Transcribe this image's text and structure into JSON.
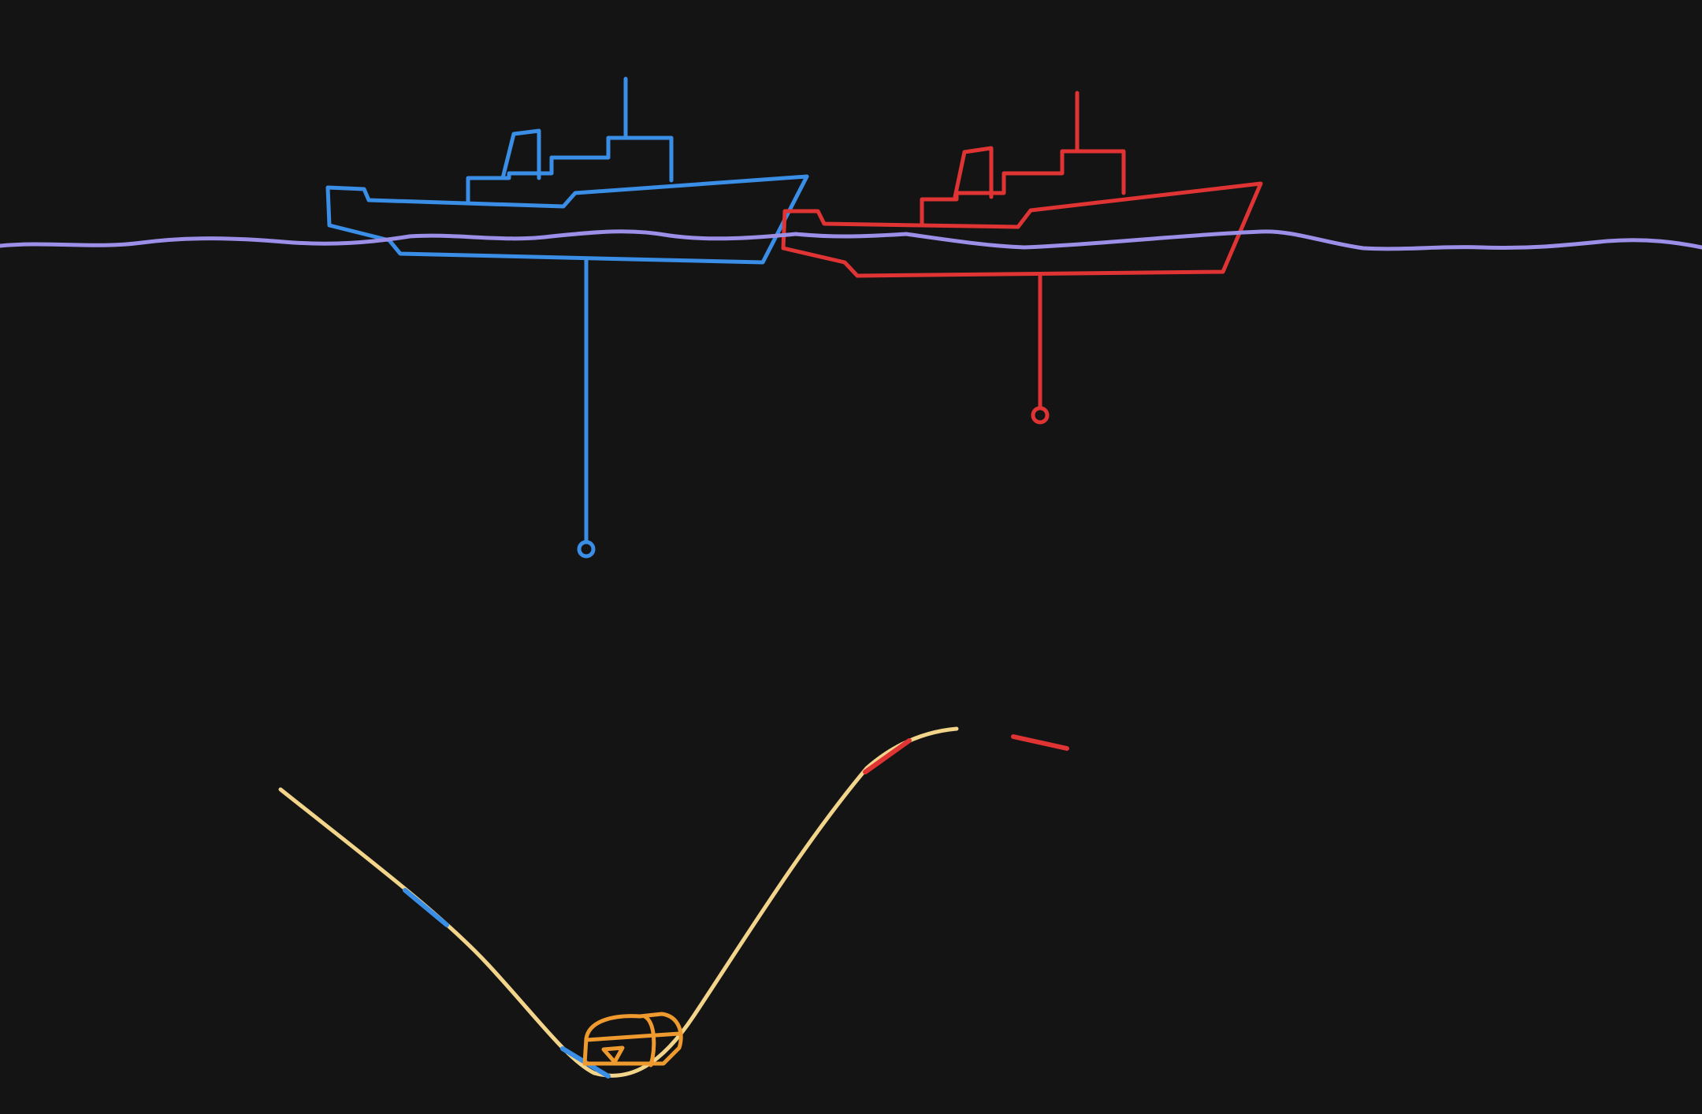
{
  "colors": {
    "background": "#141415",
    "water_surface": "#9b8fe8",
    "blue_ship": "#3a8ee6",
    "red_ship": "#e03434",
    "seafloor": "#f2d58a",
    "treasure_chest": "#ee9a2e",
    "blue_marker": "#3a8ee6",
    "red_marker": "#e03434"
  },
  "icons": {
    "blue_ship": "ship-icon",
    "red_ship": "ship-icon",
    "treasure": "treasure-chest-icon"
  }
}
